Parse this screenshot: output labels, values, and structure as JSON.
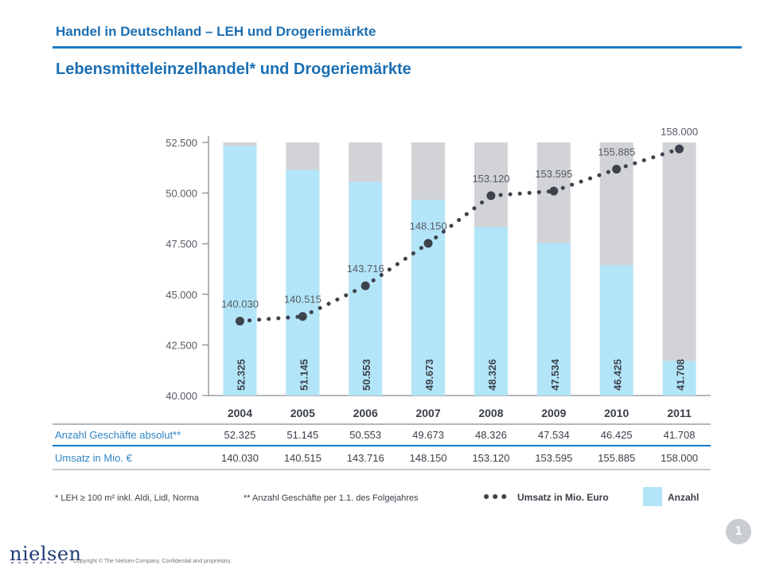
{
  "header": {
    "section_title": "Handel in Deutschland – LEH und Drogeriemärkte"
  },
  "slide": {
    "title": "Lebensmitteleinzelhandel* und Drogeriemärkte",
    "page_number": "1"
  },
  "footer": {
    "logo_text": "nielsen",
    "copyright": "Copyright © The Nielsen Company.  Confidential and proprietary."
  },
  "colors": {
    "accent": "#1a7bc4",
    "bar_fill": "#b3e5f8",
    "bar_background": "#d2d3d6",
    "line": "#3d434d",
    "label": "#555a63",
    "text_blue": "#2f86c6"
  },
  "chart_data": {
    "type": "bar",
    "categories": [
      "2004",
      "2005",
      "2006",
      "2007",
      "2008",
      "2009",
      "2010",
      "2011"
    ],
    "y_ticks": [
      "52.500",
      "50.000",
      "47.500",
      "45.000",
      "42.500",
      "40.000"
    ],
    "ylim": [
      40000,
      52500
    ],
    "series": [
      {
        "name": "Anzahl",
        "type": "bar",
        "values": [
          52325,
          51145,
          50553,
          49673,
          48326,
          47534,
          46425,
          41708
        ],
        "labels": [
          "52.325",
          "51.145",
          "50.553",
          "49.673",
          "48.326",
          "47.534",
          "46.425",
          "41.708"
        ]
      },
      {
        "name": "Umsatz in Mio. Euro",
        "type": "line-dotted",
        "values": [
          140030,
          140515,
          143716,
          148150,
          153120,
          153595,
          155885,
          158000
        ],
        "labels": [
          "140.030",
          "140.515",
          "143.716",
          "148.150",
          "153.120",
          "153.595",
          "155.885",
          "158.000"
        ]
      }
    ],
    "table": {
      "rows": [
        {
          "label": "Anzahl Geschäfte absolut**",
          "values": [
            "52.325",
            "51.145",
            "50.553",
            "49.673",
            "48.326",
            "47.534",
            "46.425",
            "41.708"
          ]
        },
        {
          "label": "Umsatz in Mio. €",
          "values": [
            "140.030",
            "140.515",
            "143.716",
            "148.150",
            "153.120",
            "153.595",
            "155.885",
            "158.000"
          ]
        }
      ]
    },
    "footnotes": [
      "* LEH ≥ 100 m² inkl. Aldi, Lidl, Norma",
      "** Anzahl Geschäfte per 1.1. des Folgejahres"
    ],
    "legend": [
      {
        "label": "Umsatz in Mio. Euro",
        "kind": "dotted-line"
      },
      {
        "label": "Anzahl",
        "kind": "bar"
      }
    ],
    "legend_position": "bottom-right",
    "grid": false
  }
}
